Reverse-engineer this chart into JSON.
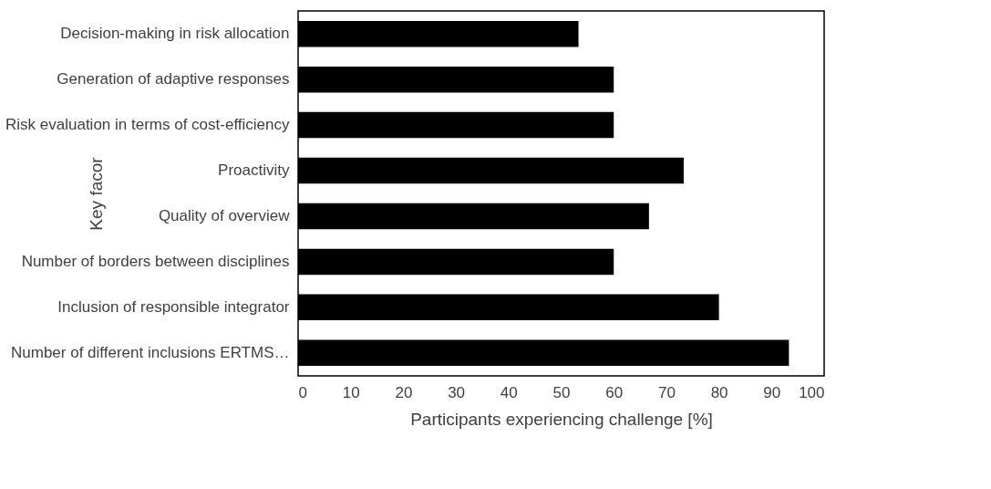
{
  "chart_data": {
    "type": "bar",
    "orientation": "horizontal",
    "xlabel": "Participants experiencing challenge [%]",
    "ylabel": "Key facor",
    "categories": [
      "Decision-making in risk allocation",
      "Generation of adaptive responses",
      "Risk evaluation in terms of cost-efficiency",
      "Proactivity",
      "Quality of overview",
      "Number of borders between disciplines",
      "Inclusion of responsible integrator",
      "Number of different inclusions ERTMS…"
    ],
    "values": [
      53.3,
      60,
      60,
      73.3,
      66.7,
      60,
      80,
      93.3
    ],
    "color": "#000000",
    "xlim": [
      0,
      100
    ],
    "xticks": [
      0,
      10,
      20,
      30,
      40,
      50,
      60,
      70,
      80,
      90,
      100
    ],
    "grid": false
  }
}
